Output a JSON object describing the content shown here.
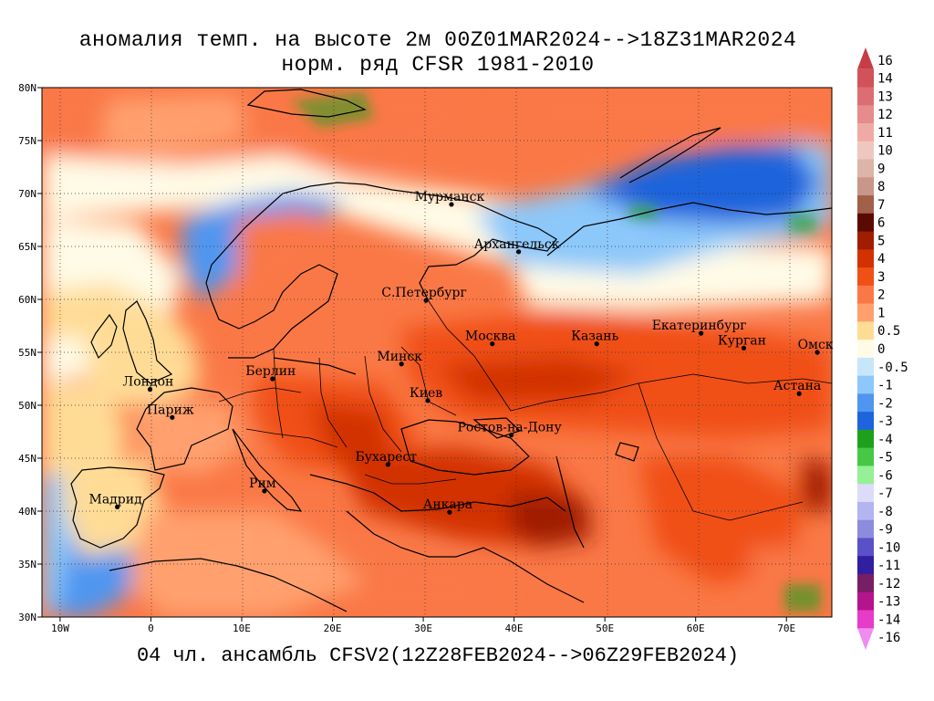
{
  "title_line1": "аномалия темп. на высоте 2м 00Z01MAR2024-->18Z31MAR2024",
  "title_line2": "норм. ряд CFSR 1981-2010",
  "bottom_caption": "04 чл. ансамбль CFSV2(12Z28FEB2024-->06Z29FEB2024)",
  "chart_data": {
    "type": "heatmap",
    "title": "аномалия темп. на высоте 2м 00Z01MAR2024-->18Z31MAR2024",
    "subtitle": "норм. ряд CFSR 1981-2010",
    "lon_range": [
      -12,
      75
    ],
    "lat_range": [
      30,
      80
    ],
    "x_ticks": [
      {
        "value": -10,
        "label": "10W"
      },
      {
        "value": 0,
        "label": "0"
      },
      {
        "value": 10,
        "label": "10E"
      },
      {
        "value": 20,
        "label": "20E"
      },
      {
        "value": 30,
        "label": "30E"
      },
      {
        "value": 40,
        "label": "40E"
      },
      {
        "value": 50,
        "label": "50E"
      },
      {
        "value": 60,
        "label": "60E"
      },
      {
        "value": 70,
        "label": "70E"
      }
    ],
    "y_ticks": [
      {
        "value": 80,
        "label": "80N"
      },
      {
        "value": 75,
        "label": "75N"
      },
      {
        "value": 70,
        "label": "70N"
      },
      {
        "value": 65,
        "label": "65N"
      },
      {
        "value": 60,
        "label": "60N"
      },
      {
        "value": 55,
        "label": "55N"
      },
      {
        "value": 50,
        "label": "50N"
      },
      {
        "value": 45,
        "label": "45N"
      },
      {
        "value": 40,
        "label": "40N"
      },
      {
        "value": 35,
        "label": "35N"
      },
      {
        "value": 30,
        "label": "30N"
      }
    ],
    "grid": true,
    "colorbar": {
      "position": "right",
      "levels": [
        {
          "label": "16",
          "color": "#c83c46"
        },
        {
          "label": "14",
          "color": "#d2525a"
        },
        {
          "label": "13",
          "color": "#dc6e73"
        },
        {
          "label": "12",
          "color": "#e68c8c"
        },
        {
          "label": "11",
          "color": "#f0aaa5"
        },
        {
          "label": "10",
          "color": "#eec8c0"
        },
        {
          "label": "9",
          "color": "#dcb4a8"
        },
        {
          "label": "8",
          "color": "#c8968a"
        },
        {
          "label": "7",
          "color": "#a0604a"
        },
        {
          "label": "6",
          "color": "#5a0a00"
        },
        {
          "label": "5",
          "color": "#a01e00"
        },
        {
          "label": "4",
          "color": "#d23200"
        },
        {
          "label": "3",
          "color": "#f05014"
        },
        {
          "label": "2",
          "color": "#fa7846"
        },
        {
          "label": "1",
          "color": "#ffa06e"
        },
        {
          "label": "0.5",
          "color": "#ffdc96"
        },
        {
          "label": "0",
          "color": "#fffbe6"
        },
        {
          "label": "-0.5",
          "color": "#c8e6fa"
        },
        {
          "label": "-1",
          "color": "#8cc8fa"
        },
        {
          "label": "-2",
          "color": "#5096f0"
        },
        {
          "label": "-3",
          "color": "#1e64dc"
        },
        {
          "label": "-4",
          "color": "#1ea01e"
        },
        {
          "label": "-5",
          "color": "#46c846"
        },
        {
          "label": "-6",
          "color": "#96f096"
        },
        {
          "label": "-7",
          "color": "#dcdcfa"
        },
        {
          "label": "-8",
          "color": "#b4b4f0"
        },
        {
          "label": "-9",
          "color": "#8c8cdc"
        },
        {
          "label": "-10",
          "color": "#5a50c8"
        },
        {
          "label": "-11",
          "color": "#321ea0"
        },
        {
          "label": "-12",
          "color": "#781e64"
        },
        {
          "label": "-13",
          "color": "#b4148c"
        },
        {
          "label": "-14",
          "color": "#e63cc8"
        },
        {
          "label": "-16",
          "color": "#f08cf0"
        }
      ]
    },
    "cities": [
      {
        "name": "Мурманск",
        "lon": 33.1,
        "lat": 68.97
      },
      {
        "name": "Архангельск",
        "lon": 40.5,
        "lat": 64.5
      },
      {
        "name": "С.Петербург",
        "lon": 30.3,
        "lat": 59.9
      },
      {
        "name": "Москва",
        "lon": 37.6,
        "lat": 55.8
      },
      {
        "name": "Казань",
        "lon": 49.1,
        "lat": 55.8
      },
      {
        "name": "Екатеринбург",
        "lon": 60.6,
        "lat": 56.8
      },
      {
        "name": "Курган",
        "lon": 65.3,
        "lat": 55.4
      },
      {
        "name": "Омск",
        "lon": 73.4,
        "lat": 55.0
      },
      {
        "name": "Астана",
        "lon": 71.4,
        "lat": 51.1
      },
      {
        "name": "Минск",
        "lon": 27.6,
        "lat": 53.9
      },
      {
        "name": "Берлин",
        "lon": 13.4,
        "lat": 52.5
      },
      {
        "name": "Лондон",
        "lon": -0.1,
        "lat": 51.5
      },
      {
        "name": "Париж",
        "lon": 2.35,
        "lat": 48.85
      },
      {
        "name": "Киев",
        "lon": 30.5,
        "lat": 50.45
      },
      {
        "name": "Ростов-на-Дону",
        "lon": 39.7,
        "lat": 47.2
      },
      {
        "name": "Бухарест",
        "lon": 26.1,
        "lat": 44.4
      },
      {
        "name": "Рим",
        "lon": 12.5,
        "lat": 41.9
      },
      {
        "name": "Мадрид",
        "lon": -3.7,
        "lat": 40.4
      },
      {
        "name": "Анкара",
        "lon": 32.9,
        "lat": 39.9
      }
    ]
  }
}
